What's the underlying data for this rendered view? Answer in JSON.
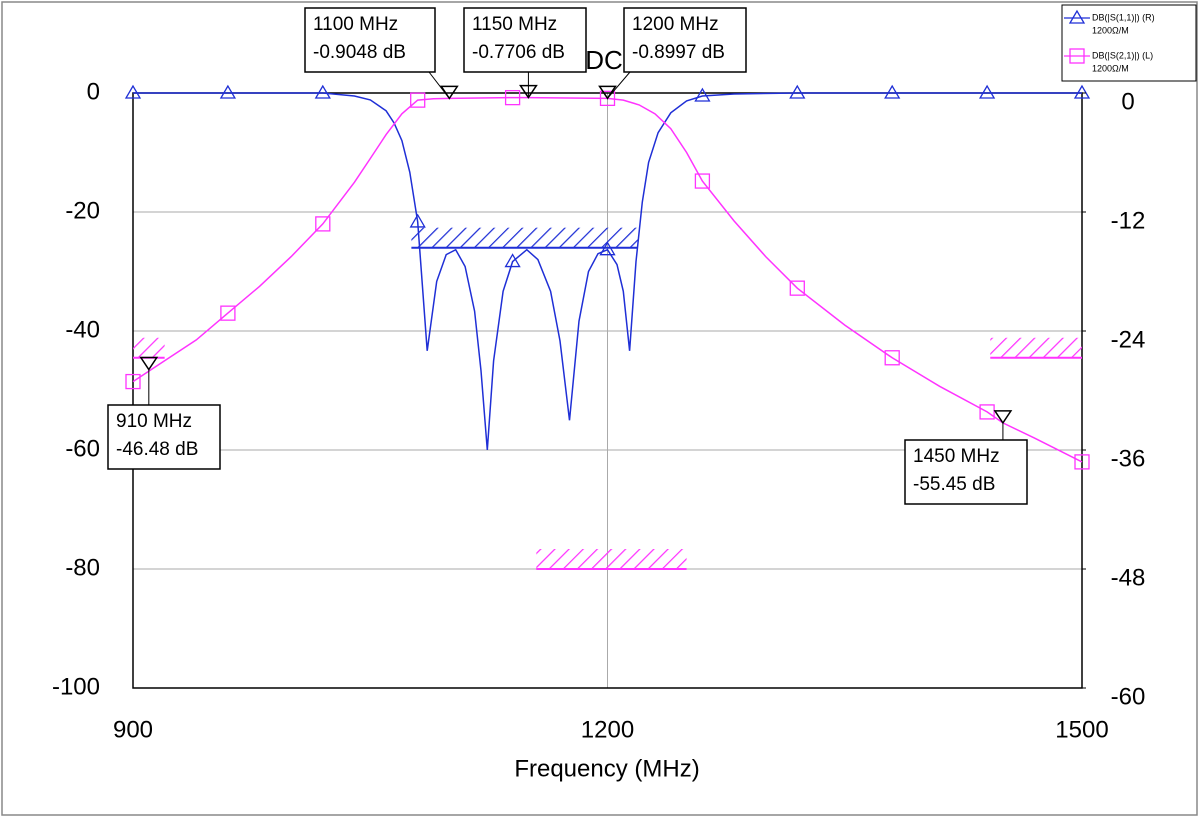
{
  "chart_data": {
    "type": "line",
    "title": "DC",
    "xlabel": "Frequency (MHz)",
    "xlim": [
      900,
      1500
    ],
    "xticks": [
      900,
      1200,
      1500
    ],
    "ylim": [
      -100,
      0
    ],
    "yticks": [
      0,
      -20,
      -40,
      -60,
      -80,
      -100
    ],
    "y2lim": [
      -60,
      0
    ],
    "y2ticks": [
      0,
      -12,
      -24,
      -36,
      -48,
      -60
    ],
    "grid": true,
    "legend": "top-right",
    "series": [
      {
        "name": "DB(|S(1,1)|) (R)",
        "sub": "1200Ω/M",
        "color": "#1f2fd6",
        "axis": "y2",
        "marker": "triangle",
        "x": [
          900,
          960,
          1000,
          1020,
          1040,
          1050,
          1060,
          1065,
          1070,
          1075,
          1080,
          1086,
          1092,
          1098,
          1104,
          1110,
          1116,
          1120,
          1124,
          1128,
          1134,
          1140,
          1149,
          1156,
          1164,
          1170,
          1176,
          1182,
          1188,
          1194,
          1200,
          1206,
          1210,
          1214,
          1218,
          1222,
          1226,
          1232,
          1240,
          1250,
          1260,
          1280,
          1320,
          1380,
          1440,
          1500
        ],
        "values": [
          0,
          0,
          0,
          0,
          -0.3,
          -0.7,
          -1.8,
          -3,
          -4.8,
          -8,
          -13,
          -26,
          -19,
          -16.3,
          -15.8,
          -17.5,
          -22,
          -28,
          -36,
          -27,
          -20,
          -17,
          -15.8,
          -16.8,
          -20,
          -25,
          -33,
          -23,
          -18,
          -16.2,
          -15.8,
          -17.3,
          -20,
          -26,
          -17,
          -11,
          -7,
          -4,
          -2,
          -0.8,
          -0.3,
          -0.1,
          0,
          0,
          0,
          0
        ]
      },
      {
        "name": "DB(|S(2,1)|) (L)",
        "sub": "1200Ω/M",
        "color": "#ff33ff",
        "axis": "y",
        "marker": "square",
        "x": [
          900,
          920,
          940,
          960,
          980,
          1000,
          1020,
          1040,
          1050,
          1060,
          1070,
          1080,
          1090,
          1100,
          1140,
          1150,
          1200,
          1210,
          1220,
          1230,
          1240,
          1250,
          1260,
          1280,
          1300,
          1320,
          1350,
          1380,
          1410,
          1440,
          1450,
          1470,
          1500
        ],
        "values": [
          -48.5,
          -45,
          -41.5,
          -37,
          -32.5,
          -27.5,
          -22,
          -15,
          -11,
          -7,
          -3.5,
          -1.2,
          -0.95,
          -0.9048,
          -0.78,
          -0.7706,
          -0.8997,
          -1.2,
          -2,
          -3.5,
          -6,
          -10,
          -14.8,
          -21.5,
          -27.5,
          -32.8,
          -39,
          -44.5,
          -49.3,
          -53.6,
          -55.45,
          -58,
          -62
        ]
      }
    ],
    "limit_lines": [
      {
        "color": "#1f2fd6",
        "axis": "y2",
        "x": [
          1076,
          1219
        ],
        "y": -15.6
      },
      {
        "color": "#ff33ff",
        "axis": "y",
        "x": [
          900,
          920
        ],
        "y": -44.5
      },
      {
        "color": "#ff33ff",
        "axis": "y",
        "x": [
          1442,
          1500
        ],
        "y": -44.5
      },
      {
        "color": "#ff33ff",
        "axis": "y",
        "x": [
          1155,
          1250
        ],
        "y": -80
      }
    ],
    "markers": [
      {
        "x": 1100,
        "x_label": "1100 MHz",
        "y": -0.9048,
        "y_label": "-0.9048 dB"
      },
      {
        "x": 1150,
        "x_label": "1150 MHz",
        "y": -0.7706,
        "y_label": "-0.7706 dB"
      },
      {
        "x": 1200,
        "x_label": "1200 MHz",
        "y": -0.8997,
        "y_label": "-0.8997 dB"
      },
      {
        "x": 910,
        "x_label": "910 MHz",
        "y": -46.48,
        "y_label": "-46.48 dB"
      },
      {
        "x": 1450,
        "x_label": "1450 MHz",
        "y": -55.45,
        "y_label": "-55.45 dB"
      }
    ]
  }
}
